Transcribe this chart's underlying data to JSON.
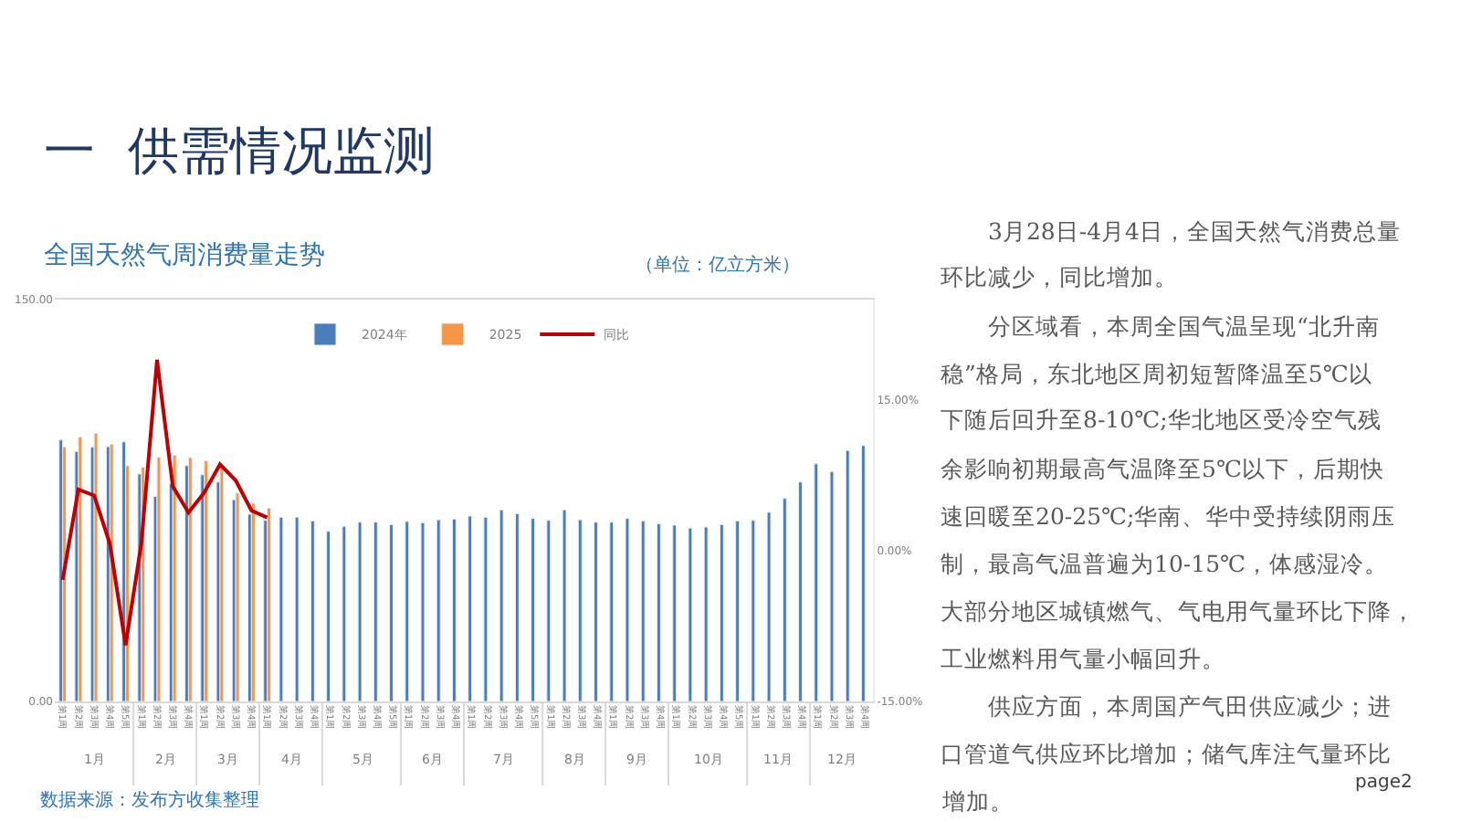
{
  "chart_data": {
    "type": "bar",
    "title": "一  供需情况监测",
    "subtitle": "全国天然气周消费量走势",
    "categories": [
      "第1周",
      "第2周",
      "第3周",
      "第4周",
      "第5周",
      "第1周",
      "第2周",
      "第3周",
      "第4周",
      "第1周",
      "第2周",
      "第3周",
      "第4周",
      "第1周",
      "第2周",
      "第3周",
      "第4周",
      "第1周",
      "第2周",
      "第3周",
      "第4周",
      "第5周",
      "第1周",
      "第2周",
      "第3周",
      "第4周",
      "第1周",
      "第2周",
      "第3周",
      "第4周",
      "第5周",
      "第1周",
      "第2周",
      "第3周",
      "第4周",
      "第1周",
      "第2周",
      "第3周",
      "第4周",
      "第1周",
      "第2周",
      "第3周",
      "第4周",
      "第5周",
      "第1周",
      "第2周",
      "第3周",
      "第4周",
      "第1周",
      "第2周",
      "第3周",
      "第4周"
    ],
    "series": [
      {
        "name": "2024年",
        "color": "#4a7ebb",
        "values": [
          97.6,
          93.3,
          94.9,
          95.1,
          96.9,
          84.9,
          76.5,
          81.2,
          88.0,
          84.6,
          81.9,
          75.3,
          69.9,
          67.6,
          68.8,
          68.8,
          67.4,
          63.5,
          65.4,
          66.9,
          66.9,
          66.0,
          67.2,
          66.7,
          67.8,
          68.1,
          69.2,
          68.8,
          71.5,
          70.1,
          68.3,
          67.6,
          71.5,
          67.8,
          66.9,
          66.9,
          68.3,
          67.4,
          66.3,
          65.8,
          64.7,
          65.1,
          66.0,
          67.4,
          67.6,
          70.6,
          75.8,
          81.9,
          88.7,
          85.8,
          93.7,
          95.5
        ]
      },
      {
        "name": "2025",
        "color": "#f79646",
        "values": [
          94.9,
          98.7,
          100.1,
          96.0,
          88.0,
          87.4,
          91.2,
          91.9,
          91.0,
          89.9,
          88.0,
          77.8,
          74.0,
          72.2,
          null,
          null,
          null,
          null,
          null,
          null,
          null,
          null,
          null,
          null,
          null,
          null,
          null,
          null,
          null,
          null,
          null,
          null,
          null,
          null,
          null,
          null,
          null,
          null,
          null,
          null,
          null,
          null,
          null,
          null,
          null,
          null,
          null,
          null,
          null,
          null,
          null,
          null
        ]
      },
      {
        "name": "同比",
        "type": "line",
        "axis": "y2",
        "color": "#c00000",
        "values": [
          -2.9,
          6.1,
          5.5,
          0.7,
          -9.4,
          0.7,
          19.0,
          6.4,
          3.8,
          5.8,
          8.6,
          7.0,
          4.0,
          3.3,
          null,
          null,
          null,
          null,
          null,
          null,
          null,
          null,
          null,
          null,
          null,
          null,
          null,
          null,
          null,
          null,
          null,
          null,
          null,
          null,
          null,
          null,
          null,
          null,
          null,
          null,
          null,
          null,
          null,
          null,
          null,
          null,
          null,
          null,
          null,
          null,
          null,
          null
        ]
      }
    ],
    "ylim": [
      0,
      150
    ],
    "yticks": [
      {
        "value": 0,
        "label": "0.00"
      },
      {
        "value": 150,
        "label": "150.00"
      }
    ],
    "y2lim": [
      -15,
      25
    ],
    "y2ticks": [
      {
        "value": -15,
        "label": "-15.00%"
      },
      {
        "value": 0,
        "label": "0.00%"
      },
      {
        "value": 15,
        "label": "15.00%"
      }
    ],
    "legend": "top",
    "line_style": "solid",
    "marker": "none",
    "annotations": [
      "1月",
      "2月",
      "3月",
      "4月",
      "5月",
      "6月",
      "7月",
      "8月",
      "9月",
      "10月",
      "11月",
      "12月",
      "（单位：亿立方米）",
      "数据来源：发布方收集整理",
      "　　3月28日-4月4日，全国天然气消费总量",
      "环比减少，同比增加。",
      "　　分区域看，本周全国气温呈现“北升南",
      "稳”格局，东北地区周初短暂降温至5℃以",
      "下随后回升至8-10℃;华北地区受冷空气残",
      "余影响初期最高气温降至5℃以下，后期快",
      "速回暖至20-25℃;华南、华中受持续阴雨压",
      "制，最高气温普遍为10-15℃，体感湿冷。",
      "大部分地区城镇燃气、气电用气量环比下降，",
      "工业燃料用气量小幅回升。",
      "　　供应方面，本周国产气田供应减少；进",
      "口管道气供应环比增加；储气库注气量环比",
      "增加。",
      "page2"
    ]
  }
}
